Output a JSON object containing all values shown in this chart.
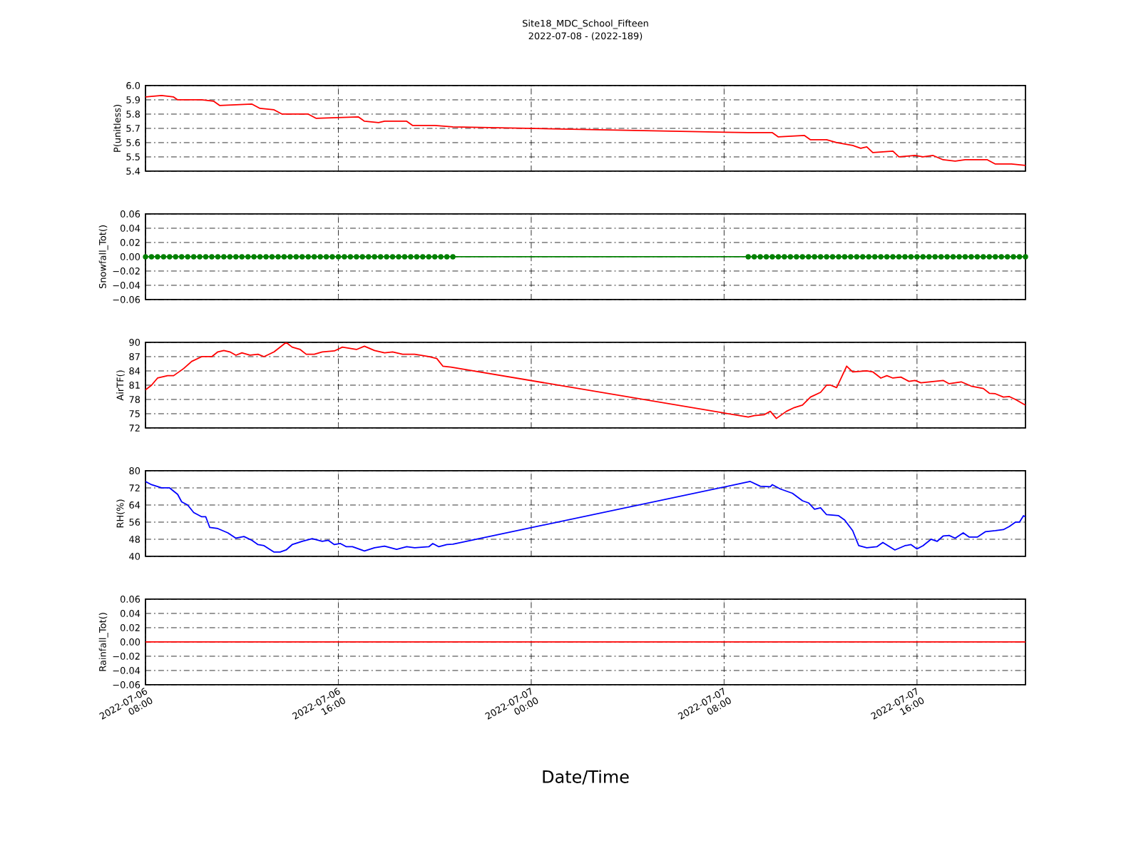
{
  "chart_data": [
    {
      "type": "line",
      "title": "Site18_MDC_School_Fifteen",
      "subtitle": "2022-07-08 - (2022-189)",
      "ylabel": "P(unitless)",
      "color": "#ff0000",
      "grid": true,
      "tick_labels": "y",
      "xlim": [
        "2022-07-06T08:00",
        "2022-07-07T20:30"
      ],
      "xticks": [
        {
          "value": "2022-07-06T08:00",
          "label": null
        },
        {
          "value": "2022-07-06T16:00",
          "label": null
        },
        {
          "value": "2022-07-07T00:00",
          "label": null
        },
        {
          "value": "2022-07-07T08:00",
          "label": null
        },
        {
          "value": "2022-07-07T16:00",
          "label": null
        }
      ],
      "ylim": [
        5.4,
        6.0
      ],
      "yticks": [
        5.4,
        5.5,
        5.6,
        5.7,
        5.8,
        5.9,
        {
          "value": 6.0,
          "label": "6.0"
        }
      ],
      "x": [
        "2022-07-06T08:00",
        "2022-07-06T08:40",
        "2022-07-06T09:10",
        "2022-07-06T09:20",
        "2022-07-06T10:20",
        "2022-07-06T10:50",
        "2022-07-06T11:05",
        "2022-07-06T12:25",
        "2022-07-06T12:45",
        "2022-07-06T13:20",
        "2022-07-06T13:40",
        "2022-07-06T14:45",
        "2022-07-06T15:05",
        "2022-07-06T16:50",
        "2022-07-06T17:05",
        "2022-07-06T17:40",
        "2022-07-06T17:55",
        "2022-07-06T18:50",
        "2022-07-06T19:05",
        "2022-07-06T20:00",
        "2022-07-06T20:45",
        "2022-07-07T09:00",
        "2022-07-07T10:00",
        "2022-07-07T10:15",
        "2022-07-07T11:20",
        "2022-07-07T11:35",
        "2022-07-07T12:15",
        "2022-07-07T12:40",
        "2022-07-07T13:20",
        "2022-07-07T13:40",
        "2022-07-07T13:55",
        "2022-07-07T14:10",
        "2022-07-07T15:00",
        "2022-07-07T15:15",
        "2022-07-07T15:55",
        "2022-07-07T16:15",
        "2022-07-07T16:40",
        "2022-07-07T17:05",
        "2022-07-07T17:35",
        "2022-07-07T18:00",
        "2022-07-07T18:55",
        "2022-07-07T19:15",
        "2022-07-07T19:55",
        "2022-07-07T20:30"
      ],
      "values": [
        5.92,
        5.93,
        5.92,
        5.9,
        5.9,
        5.89,
        5.86,
        5.87,
        5.84,
        5.83,
        5.8,
        5.8,
        5.77,
        5.78,
        5.75,
        5.74,
        5.75,
        5.75,
        5.72,
        5.72,
        5.71,
        5.67,
        5.67,
        5.64,
        5.65,
        5.62,
        5.62,
        5.6,
        5.58,
        5.56,
        5.57,
        5.53,
        5.54,
        5.5,
        5.51,
        5.5,
        5.51,
        5.48,
        5.47,
        5.48,
        5.48,
        5.45,
        5.45,
        5.44
      ]
    },
    {
      "type": "line",
      "ylabel": "Snowfall_Tot()",
      "color": "#008000",
      "marker": "circle",
      "grid": true,
      "tick_labels": "y",
      "xlim": [
        "2022-07-06T08:00",
        "2022-07-07T20:30"
      ],
      "xticks": [
        {
          "value": "2022-07-06T08:00",
          "label": null
        },
        {
          "value": "2022-07-06T16:00",
          "label": null
        },
        {
          "value": "2022-07-07T00:00",
          "label": null
        },
        {
          "value": "2022-07-07T08:00",
          "label": null
        },
        {
          "value": "2022-07-07T16:00",
          "label": null
        }
      ],
      "ylim": [
        -0.06,
        0.06
      ],
      "yticks": [
        {
          "value": -0.06,
          "label": "−0.06"
        },
        {
          "value": -0.04,
          "label": "−0.04"
        },
        {
          "value": -0.02,
          "label": "−0.02"
        },
        {
          "value": 0,
          "label": "0.00"
        },
        {
          "value": 0.02,
          "label": "0.02"
        },
        {
          "value": 0.04,
          "label": "0.04"
        },
        {
          "value": 0.06,
          "label": "0.06"
        }
      ],
      "x": [
        "2022-07-06T08:00",
        "2022-07-06T08:15",
        "2022-07-06T08:30",
        "2022-07-06T08:45",
        "2022-07-06T09:00",
        "2022-07-06T09:15",
        "2022-07-06T09:30",
        "2022-07-06T09:45",
        "2022-07-06T10:00",
        "2022-07-06T10:15",
        "2022-07-06T10:30",
        "2022-07-06T10:45",
        "2022-07-06T11:00",
        "2022-07-06T11:15",
        "2022-07-06T11:30",
        "2022-07-06T11:45",
        "2022-07-06T12:00",
        "2022-07-06T12:15",
        "2022-07-06T12:30",
        "2022-07-06T12:45",
        "2022-07-06T13:00",
        "2022-07-06T13:15",
        "2022-07-06T13:30",
        "2022-07-06T13:45",
        "2022-07-06T14:00",
        "2022-07-06T14:15",
        "2022-07-06T14:30",
        "2022-07-06T14:45",
        "2022-07-06T15:00",
        "2022-07-06T15:15",
        "2022-07-06T15:30",
        "2022-07-06T15:45",
        "2022-07-06T16:00",
        "2022-07-06T16:15",
        "2022-07-06T16:30",
        "2022-07-06T16:45",
        "2022-07-06T17:00",
        "2022-07-06T17:15",
        "2022-07-06T17:30",
        "2022-07-06T17:45",
        "2022-07-06T18:00",
        "2022-07-06T18:15",
        "2022-07-06T18:30",
        "2022-07-06T18:45",
        "2022-07-06T19:00",
        "2022-07-06T19:15",
        "2022-07-06T19:30",
        "2022-07-06T19:45",
        "2022-07-06T20:00",
        "2022-07-06T20:15",
        "2022-07-06T20:30",
        "2022-07-06T20:45",
        "2022-07-07T09:00",
        "2022-07-07T09:15",
        "2022-07-07T09:30",
        "2022-07-07T09:45",
        "2022-07-07T10:00",
        "2022-07-07T10:15",
        "2022-07-07T10:30",
        "2022-07-07T10:45",
        "2022-07-07T11:00",
        "2022-07-07T11:15",
        "2022-07-07T11:30",
        "2022-07-07T11:45",
        "2022-07-07T12:00",
        "2022-07-07T12:15",
        "2022-07-07T12:30",
        "2022-07-07T12:45",
        "2022-07-07T13:00",
        "2022-07-07T13:15",
        "2022-07-07T13:30",
        "2022-07-07T13:45",
        "2022-07-07T14:00",
        "2022-07-07T14:15",
        "2022-07-07T14:30",
        "2022-07-07T14:45",
        "2022-07-07T15:00",
        "2022-07-07T15:15",
        "2022-07-07T15:30",
        "2022-07-07T15:45",
        "2022-07-07T16:00",
        "2022-07-07T16:15",
        "2022-07-07T16:30",
        "2022-07-07T16:45",
        "2022-07-07T17:00",
        "2022-07-07T17:15",
        "2022-07-07T17:30",
        "2022-07-07T17:45",
        "2022-07-07T18:00",
        "2022-07-07T18:15",
        "2022-07-07T18:30",
        "2022-07-07T18:45",
        "2022-07-07T19:00",
        "2022-07-07T19:15",
        "2022-07-07T19:30",
        "2022-07-07T19:45",
        "2022-07-07T20:00",
        "2022-07-07T20:15",
        "2022-07-07T20:30"
      ],
      "values": [
        0,
        0,
        0,
        0,
        0,
        0,
        0,
        0,
        0,
        0,
        0,
        0,
        0,
        0,
        0,
        0,
        0,
        0,
        0,
        0,
        0,
        0,
        0,
        0,
        0,
        0,
        0,
        0,
        0,
        0,
        0,
        0,
        0,
        0,
        0,
        0,
        0,
        0,
        0,
        0,
        0,
        0,
        0,
        0,
        0,
        0,
        0,
        0,
        0,
        0,
        0,
        0,
        0,
        0,
        0,
        0,
        0,
        0,
        0,
        0,
        0,
        0,
        0,
        0,
        0,
        0,
        0,
        0,
        0,
        0,
        0,
        0,
        0,
        0,
        0,
        0,
        0,
        0,
        0,
        0,
        0,
        0,
        0,
        0,
        0,
        0,
        0,
        0,
        0,
        0,
        0,
        0,
        0,
        0,
        0,
        0,
        0,
        0,
        0
      ]
    },
    {
      "type": "line",
      "ylabel": "AirTF()",
      "color": "#ff0000",
      "grid": true,
      "tick_labels": "y",
      "xlim": [
        "2022-07-06T08:00",
        "2022-07-07T20:30"
      ],
      "xticks": [
        {
          "value": "2022-07-06T08:00",
          "label": null
        },
        {
          "value": "2022-07-06T16:00",
          "label": null
        },
        {
          "value": "2022-07-07T00:00",
          "label": null
        },
        {
          "value": "2022-07-07T08:00",
          "label": null
        },
        {
          "value": "2022-07-07T16:00",
          "label": null
        }
      ],
      "ylim": [
        72,
        90
      ],
      "yticks": [
        72,
        75,
        78,
        81,
        84,
        87,
        90
      ],
      "x": [
        "2022-07-06T08:00",
        "2022-07-06T08:15",
        "2022-07-06T08:30",
        "2022-07-06T08:55",
        "2022-07-06T09:10",
        "2022-07-06T09:35",
        "2022-07-06T09:55",
        "2022-07-06T10:20",
        "2022-07-06T10:45",
        "2022-07-06T11:00",
        "2022-07-06T11:15",
        "2022-07-06T11:30",
        "2022-07-06T11:45",
        "2022-07-06T12:00",
        "2022-07-06T12:20",
        "2022-07-06T12:40",
        "2022-07-06T12:55",
        "2022-07-06T13:20",
        "2022-07-06T13:35",
        "2022-07-06T13:50",
        "2022-07-06T14:05",
        "2022-07-06T14:25",
        "2022-07-06T14:40",
        "2022-07-06T15:00",
        "2022-07-06T15:20",
        "2022-07-06T15:50",
        "2022-07-06T16:10",
        "2022-07-06T16:45",
        "2022-07-06T17:05",
        "2022-07-06T17:30",
        "2022-07-06T17:55",
        "2022-07-06T18:15",
        "2022-07-06T18:40",
        "2022-07-06T19:10",
        "2022-07-06T19:45",
        "2022-07-06T20:05",
        "2022-07-06T20:20",
        "2022-07-06T20:40",
        "2022-07-07T09:00",
        "2022-07-07T09:15",
        "2022-07-07T09:40",
        "2022-07-07T09:55",
        "2022-07-07T10:10",
        "2022-07-07T10:35",
        "2022-07-07T10:55",
        "2022-07-07T11:15",
        "2022-07-07T11:35",
        "2022-07-07T12:00",
        "2022-07-07T12:15",
        "2022-07-07T12:25",
        "2022-07-07T12:40",
        "2022-07-07T13:05",
        "2022-07-07T13:20",
        "2022-07-07T13:55",
        "2022-07-07T14:10",
        "2022-07-07T14:30",
        "2022-07-07T14:45",
        "2022-07-07T15:00",
        "2022-07-07T15:20",
        "2022-07-07T15:40",
        "2022-07-07T15:55",
        "2022-07-07T16:10",
        "2022-07-07T17:05",
        "2022-07-07T17:20",
        "2022-07-07T17:50",
        "2022-07-07T18:15",
        "2022-07-07T18:45",
        "2022-07-07T19:00",
        "2022-07-07T19:15",
        "2022-07-07T19:35",
        "2022-07-07T19:50",
        "2022-07-07T20:05",
        "2022-07-07T20:30"
      ],
      "values": [
        80,
        81,
        82.5,
        83,
        83,
        84.5,
        86,
        87,
        87,
        88,
        88.3,
        88,
        87.3,
        87.8,
        87.3,
        87.5,
        87,
        88,
        89,
        90,
        89,
        88.5,
        87.5,
        87.5,
        88,
        88.2,
        89,
        88.5,
        89.2,
        88.3,
        87.8,
        88,
        87.5,
        87.5,
        87,
        86.6,
        85,
        84.8,
        74.3,
        74.6,
        74.8,
        75.5,
        74,
        75.5,
        76.3,
        76.8,
        78.5,
        79.5,
        81,
        81,
        80.5,
        85,
        83.8,
        84,
        83.8,
        82.5,
        83,
        82.5,
        82.7,
        81.8,
        82,
        81.5,
        82,
        81.3,
        81.7,
        80.8,
        80.3,
        79.3,
        79.2,
        78.5,
        78.6,
        78,
        76.8
      ]
    },
    {
      "type": "line",
      "ylabel": "RH(%)",
      "color": "#0000ff",
      "grid": true,
      "tick_labels": "y",
      "xlim": [
        "2022-07-06T08:00",
        "2022-07-07T20:30"
      ],
      "xticks": [
        {
          "value": "2022-07-06T08:00",
          "label": null
        },
        {
          "value": "2022-07-06T16:00",
          "label": null
        },
        {
          "value": "2022-07-07T00:00",
          "label": null
        },
        {
          "value": "2022-07-07T08:00",
          "label": null
        },
        {
          "value": "2022-07-07T16:00",
          "label": null
        }
      ],
      "ylim": [
        40,
        80
      ],
      "yticks": [
        40,
        48,
        56,
        64,
        72,
        80
      ],
      "x": [
        "2022-07-06T08:00",
        "2022-07-06T08:15",
        "2022-07-06T08:40",
        "2022-07-06T09:00",
        "2022-07-06T09:20",
        "2022-07-06T09:30",
        "2022-07-06T09:45",
        "2022-07-06T10:00",
        "2022-07-06T10:20",
        "2022-07-06T10:30",
        "2022-07-06T10:40",
        "2022-07-06T11:00",
        "2022-07-06T11:25",
        "2022-07-06T11:45",
        "2022-07-06T12:05",
        "2022-07-06T12:25",
        "2022-07-06T12:40",
        "2022-07-06T12:55",
        "2022-07-06T13:20",
        "2022-07-06T13:35",
        "2022-07-06T13:50",
        "2022-07-06T14:05",
        "2022-07-06T14:30",
        "2022-07-06T14:55",
        "2022-07-06T15:20",
        "2022-07-06T15:35",
        "2022-07-06T15:50",
        "2022-07-06T16:05",
        "2022-07-06T16:20",
        "2022-07-06T16:35",
        "2022-07-06T17:05",
        "2022-07-06T17:30",
        "2022-07-06T17:55",
        "2022-07-06T18:25",
        "2022-07-06T18:50",
        "2022-07-06T19:10",
        "2022-07-06T19:45",
        "2022-07-06T19:55",
        "2022-07-06T20:10",
        "2022-07-06T20:30",
        "2022-07-06T20:45",
        "2022-07-07T09:05",
        "2022-07-07T09:30",
        "2022-07-07T09:55",
        "2022-07-07T10:00",
        "2022-07-07T10:20",
        "2022-07-07T10:50",
        "2022-07-07T11:15",
        "2022-07-07T11:30",
        "2022-07-07T11:45",
        "2022-07-07T12:00",
        "2022-07-07T12:15",
        "2022-07-07T12:45",
        "2022-07-07T13:00",
        "2022-07-07T13:20",
        "2022-07-07T13:35",
        "2022-07-07T13:55",
        "2022-07-07T14:20",
        "2022-07-07T14:35",
        "2022-07-07T15:05",
        "2022-07-07T15:30",
        "2022-07-07T15:45",
        "2022-07-07T16:00",
        "2022-07-07T16:15",
        "2022-07-07T16:35",
        "2022-07-07T16:50",
        "2022-07-07T17:05",
        "2022-07-07T17:20",
        "2022-07-07T17:35",
        "2022-07-07T17:55",
        "2022-07-07T18:10",
        "2022-07-07T18:30",
        "2022-07-07T18:50",
        "2022-07-07T19:15",
        "2022-07-07T19:35",
        "2022-07-07T19:50",
        "2022-07-07T20:05",
        "2022-07-07T20:15",
        "2022-07-07T20:25",
        "2022-07-07T20:30"
      ],
      "values": [
        75,
        73.5,
        72,
        72,
        69,
        65.5,
        64,
        60.5,
        58.5,
        58.5,
        53.5,
        53,
        51,
        48.5,
        49.3,
        47.5,
        45.5,
        45,
        42,
        42,
        43,
        45.5,
        47,
        48.3,
        47,
        47.5,
        45.5,
        46,
        44.5,
        44.5,
        42.5,
        44,
        44.8,
        43.3,
        44.5,
        44,
        44.5,
        46,
        44.5,
        45.5,
        45.7,
        75,
        72.8,
        72.5,
        73.5,
        71.5,
        69.5,
        66,
        65,
        62,
        62.7,
        59.5,
        59,
        57,
        52,
        45,
        44,
        44.5,
        46.5,
        43,
        45,
        45.5,
        43.5,
        45,
        48,
        47,
        49.5,
        49.8,
        48.5,
        51,
        49,
        49,
        51.5,
        52,
        52.5,
        54,
        56,
        56,
        59,
        58.5
      ]
    },
    {
      "type": "line",
      "ylabel": "Rainfall_Tot()",
      "xlabel": "Date/Time",
      "color": "#ff0000",
      "grid": true,
      "xlim": [
        "2022-07-06T08:00",
        "2022-07-07T20:30"
      ],
      "xticks": [
        {
          "value": "2022-07-06T08:00",
          "label": "2022-07-06 08:00"
        },
        {
          "value": "2022-07-06T16:00",
          "label": "2022-07-06 16:00"
        },
        {
          "value": "2022-07-07T00:00",
          "label": "2022-07-07 00:00"
        },
        {
          "value": "2022-07-07T08:00",
          "label": "2022-07-07 08:00"
        },
        {
          "value": "2022-07-07T16:00",
          "label": "2022-07-07 16:00"
        }
      ],
      "ylim": [
        -0.06,
        0.06
      ],
      "yticks": [
        {
          "value": -0.06,
          "label": "−0.06"
        },
        {
          "value": -0.04,
          "label": "−0.04"
        },
        {
          "value": -0.02,
          "label": "−0.02"
        },
        {
          "value": 0,
          "label": "0.00"
        },
        {
          "value": 0.02,
          "label": "0.02"
        },
        {
          "value": 0.04,
          "label": "0.04"
        },
        {
          "value": 0.06,
          "label": "0.06"
        }
      ],
      "x": [
        "2022-07-06T08:00",
        "2022-07-06T09:00",
        "2022-07-06T10:00",
        "2022-07-06T11:00",
        "2022-07-06T12:00",
        "2022-07-06T13:00",
        "2022-07-06T14:00",
        "2022-07-06T15:00",
        "2022-07-06T16:00",
        "2022-07-06T17:00",
        "2022-07-06T18:00",
        "2022-07-06T19:00",
        "2022-07-06T20:00",
        "2022-07-06T20:45",
        "2022-07-07T09:00",
        "2022-07-07T10:00",
        "2022-07-07T11:00",
        "2022-07-07T12:00",
        "2022-07-07T13:00",
        "2022-07-07T14:00",
        "2022-07-07T15:00",
        "2022-07-07T16:00",
        "2022-07-07T17:00",
        "2022-07-07T18:00",
        "2022-07-07T19:00",
        "2022-07-07T20:00",
        "2022-07-07T20:30"
      ],
      "values": [
        0,
        0,
        0,
        0,
        0,
        0,
        0,
        0,
        0,
        0,
        0,
        0,
        0,
        0,
        0,
        0,
        0,
        0,
        0,
        0,
        0,
        0,
        0,
        0,
        0,
        0,
        0
      ]
    }
  ]
}
